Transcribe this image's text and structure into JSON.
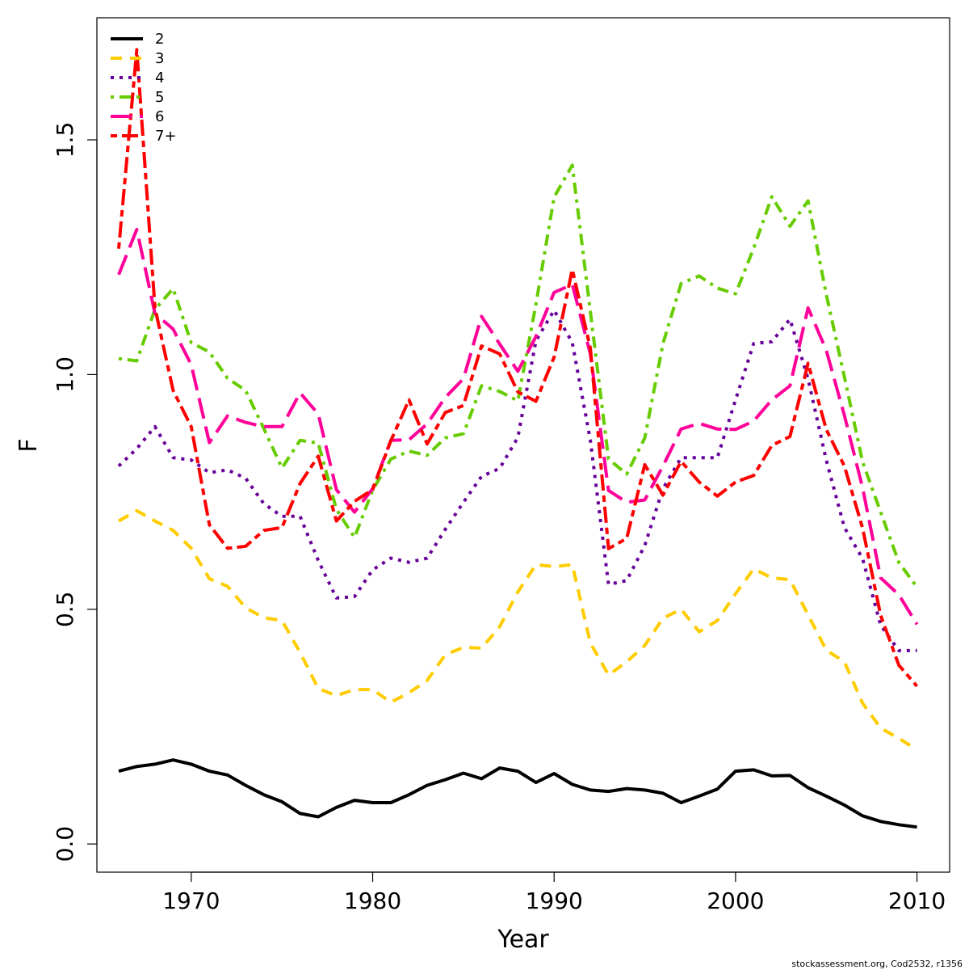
{
  "chart_data": {
    "type": "line",
    "xlabel": "Year",
    "ylabel": "F",
    "xlim": [
      1964.8,
      2011.8
    ],
    "ylim": [
      -0.06,
      1.76
    ],
    "x_ticks": [
      1970,
      1980,
      1990,
      2000,
      2010
    ],
    "x_tick_labels": [
      "1970",
      "1980",
      "1990",
      "2000",
      "2010"
    ],
    "y_ticks": [
      0.0,
      0.5,
      1.0,
      1.5
    ],
    "y_tick_labels": [
      "0.0",
      "0.5",
      "1.0",
      "1.5"
    ],
    "grid": false,
    "legend_position": "top-left",
    "x": [
      1966,
      1967,
      1968,
      1969,
      1970,
      1971,
      1972,
      1973,
      1974,
      1975,
      1976,
      1977,
      1978,
      1979,
      1980,
      1981,
      1982,
      1983,
      1984,
      1985,
      1986,
      1987,
      1988,
      1989,
      1990,
      1991,
      1992,
      1993,
      1994,
      1995,
      1996,
      1997,
      1998,
      1999,
      2000,
      2001,
      2002,
      2003,
      2004,
      2005,
      2006,
      2007,
      2008,
      2009,
      2010
    ],
    "series": [
      {
        "name": "2",
        "color": "#000000",
        "dash": "solid",
        "values": [
          0.155,
          0.165,
          0.17,
          0.179,
          0.17,
          0.155,
          0.147,
          0.125,
          0.105,
          0.09,
          0.065,
          0.058,
          0.078,
          0.093,
          0.088,
          0.088,
          0.105,
          0.125,
          0.137,
          0.151,
          0.139,
          0.162,
          0.155,
          0.131,
          0.15,
          0.127,
          0.115,
          0.112,
          0.118,
          0.115,
          0.108,
          0.088,
          0.102,
          0.117,
          0.155,
          0.158,
          0.145,
          0.146,
          0.12,
          0.102,
          0.083,
          0.06,
          0.048,
          0.041,
          0.036
        ]
      },
      {
        "name": "3",
        "color": "#ffcc00",
        "dash": "dashed",
        "values": [
          0.688,
          0.71,
          0.688,
          0.668,
          0.63,
          0.565,
          0.549,
          0.503,
          0.482,
          0.476,
          0.408,
          0.331,
          0.316,
          0.329,
          0.329,
          0.302,
          0.322,
          0.348,
          0.403,
          0.419,
          0.417,
          0.463,
          0.537,
          0.595,
          0.591,
          0.595,
          0.428,
          0.36,
          0.388,
          0.423,
          0.481,
          0.5,
          0.452,
          0.476,
          0.533,
          0.586,
          0.567,
          0.563,
          0.488,
          0.413,
          0.388,
          0.3,
          0.247,
          0.225,
          0.201
        ]
      },
      {
        "name": "4",
        "color": "#660099",
        "dash": "dotted",
        "values": [
          0.805,
          0.842,
          0.889,
          0.823,
          0.818,
          0.791,
          0.797,
          0.779,
          0.725,
          0.698,
          0.698,
          0.604,
          0.524,
          0.527,
          0.584,
          0.609,
          0.6,
          0.609,
          0.67,
          0.728,
          0.783,
          0.8,
          0.866,
          1.072,
          1.137,
          1.068,
          0.86,
          0.553,
          0.561,
          0.636,
          0.757,
          0.823,
          0.823,
          0.823,
          0.946,
          1.066,
          1.07,
          1.118,
          0.991,
          0.818,
          0.674,
          0.608,
          0.466,
          0.412,
          0.412
        ]
      },
      {
        "name": "5",
        "color": "#66cc00",
        "dash": "dotdash",
        "values": [
          1.034,
          1.029,
          1.139,
          1.183,
          1.068,
          1.048,
          0.992,
          0.966,
          0.885,
          0.801,
          0.86,
          0.854,
          0.713,
          0.653,
          0.754,
          0.82,
          0.837,
          0.828,
          0.865,
          0.874,
          0.976,
          0.964,
          0.944,
          1.15,
          1.378,
          1.446,
          1.134,
          0.82,
          0.788,
          0.865,
          1.066,
          1.194,
          1.21,
          1.184,
          1.172,
          1.269,
          1.379,
          1.316,
          1.37,
          1.171,
          0.995,
          0.814,
          0.707,
          0.6,
          0.547
        ]
      },
      {
        "name": "6",
        "color": "#ff0099",
        "dash": "longdash",
        "values": [
          1.213,
          1.309,
          1.13,
          1.097,
          1.021,
          0.855,
          0.912,
          0.898,
          0.889,
          0.889,
          0.961,
          0.916,
          0.755,
          0.707,
          0.757,
          0.86,
          0.861,
          0.895,
          0.951,
          0.991,
          1.124,
          1.065,
          1.007,
          1.081,
          1.175,
          1.192,
          1.044,
          0.753,
          0.728,
          0.733,
          0.805,
          0.884,
          0.896,
          0.884,
          0.883,
          0.901,
          0.946,
          0.976,
          1.142,
          1.052,
          0.913,
          0.759,
          0.567,
          0.531,
          0.468
        ]
      },
      {
        "name": "7+",
        "color": "#ff0000",
        "dash": "twodash",
        "values": [
          1.268,
          1.692,
          1.142,
          0.966,
          0.889,
          0.68,
          0.63,
          0.634,
          0.668,
          0.674,
          0.768,
          0.826,
          0.688,
          0.73,
          0.755,
          0.859,
          0.946,
          0.852,
          0.919,
          0.934,
          1.061,
          1.044,
          0.963,
          0.943,
          1.037,
          1.224,
          1.056,
          0.629,
          0.651,
          0.808,
          0.743,
          0.815,
          0.771,
          0.741,
          0.771,
          0.785,
          0.849,
          0.868,
          1.024,
          0.883,
          0.805,
          0.673,
          0.487,
          0.381,
          0.336
        ]
      }
    ]
  },
  "footer_text": "stockassessment.org, Cod2532, r1356"
}
